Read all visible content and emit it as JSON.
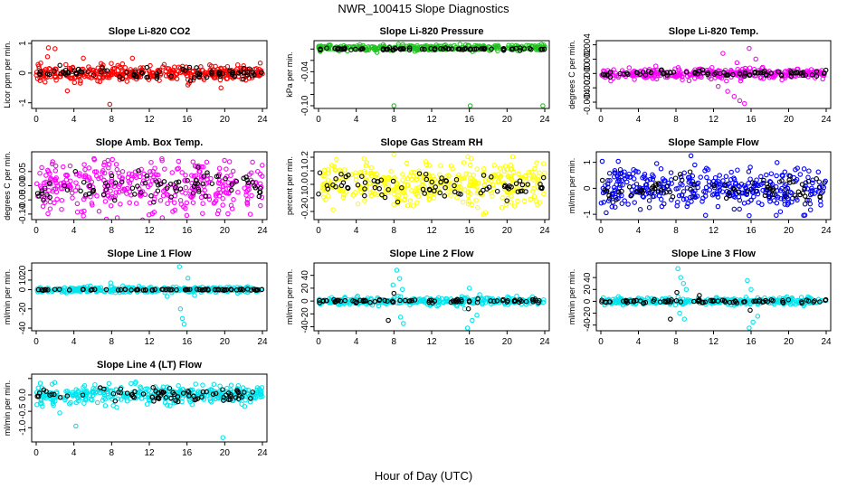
{
  "figure": {
    "title": "NWR_100415  Slope Diagnostics",
    "xlabel": "Hour of Day (UTC)"
  },
  "colors": {
    "red": "#ff0000",
    "green": "#22c222",
    "magenta": "#ff00ff",
    "yellow": "#ffff00",
    "blue": "#0000ff",
    "cyan": "#00e5ee",
    "black": "#000000"
  },
  "chart_data": [
    {
      "type": "scatter",
      "title": "Slope Li-820 CO2",
      "ylabel": "Licor ppm per min.",
      "xlim": [
        0,
        24
      ],
      "xticks": [
        0,
        4,
        8,
        12,
        16,
        20,
        24
      ],
      "ylim": [
        -1.1,
        1.0
      ],
      "yticks": [
        -1,
        0,
        1
      ],
      "series": [
        {
          "color": "red",
          "n": 380,
          "center": 0.0,
          "spread": 0.13,
          "outliers": [
            [
              1.3,
              0.85
            ],
            [
              2.0,
              0.82
            ],
            [
              1.2,
              0.55
            ],
            [
              5.0,
              0.5
            ],
            [
              10.2,
              0.5
            ],
            [
              3.3,
              -0.6
            ],
            [
              7.8,
              -1.05
            ],
            [
              16.1,
              -0.4
            ],
            [
              19.6,
              -0.5
            ]
          ]
        },
        {
          "color": "black",
          "n": 80,
          "center": 0.0,
          "spread": 0.1,
          "outliers": []
        }
      ]
    },
    {
      "type": "scatter",
      "title": "Slope Li-820 Pressure",
      "ylabel": "kPa per min.",
      "xlim": [
        0,
        24
      ],
      "xticks": [
        0,
        4,
        8,
        12,
        16,
        20,
        24
      ],
      "ylim": [
        -0.1,
        0.01
      ],
      "yticks": [
        -0.1,
        -0.08,
        -0.06,
        -0.04,
        -0.02,
        0
      ],
      "ytick_labels": [
        "-0.10",
        "",
        "",
        "-0.04",
        "",
        ""
      ],
      "series": [
        {
          "color": "green",
          "n": 330,
          "center": 0.002,
          "spread": 0.0025,
          "outliers": [
            [
              6.2,
              -0.006
            ],
            [
              8.0,
              -0.1
            ],
            [
              16.1,
              -0.1
            ],
            [
              23.8,
              -0.1
            ],
            [
              19.0,
              -0.003
            ]
          ]
        },
        {
          "color": "black",
          "n": 80,
          "center": 0.0,
          "spread": 0.001,
          "outliers": []
        }
      ]
    },
    {
      "type": "scatter",
      "title": "Slope Li-820 Temp.",
      "ylabel": "degrees C per min.",
      "xlim": [
        0,
        24
      ],
      "xticks": [
        0,
        4,
        8,
        12,
        16,
        20,
        24
      ],
      "ylim": [
        -0.0045,
        0.0042
      ],
      "yticks": [
        -0.004,
        -0.002,
        0,
        0.002,
        0.004
      ],
      "ytick_labels": [
        "-0.004",
        "-0.002",
        "0.000",
        "0.002",
        "0.004"
      ],
      "series": [
        {
          "color": "magenta",
          "n": 330,
          "center": 0.0,
          "spread": 0.0004,
          "outliers": [
            [
              13.5,
              -0.0025
            ],
            [
              14.2,
              -0.0032
            ],
            [
              14.8,
              -0.0038
            ],
            [
              15.3,
              -0.0042
            ],
            [
              15.8,
              0.0035
            ],
            [
              13.0,
              0.0028
            ],
            [
              16.5,
              0.002
            ],
            [
              12.5,
              -0.0018
            ],
            [
              14.5,
              0.0015
            ]
          ]
        },
        {
          "color": "black",
          "n": 80,
          "center": 0.0,
          "spread": 0.0002,
          "outliers": []
        }
      ]
    },
    {
      "type": "scatter",
      "title": "Slope Amb. Box Temp.",
      "ylabel": "degrees C per min.",
      "xlim": [
        0,
        24
      ],
      "xticks": [
        0,
        4,
        8,
        12,
        16,
        20,
        24
      ],
      "ylim": [
        -0.11,
        0.11
      ],
      "yticks": [
        -0.1,
        -0.05,
        0,
        0.05
      ],
      "ytick_labels": [
        "-0.10",
        "-0.05",
        "0.00",
        "0.05"
      ],
      "series": [
        {
          "color": "magenta",
          "n": 360,
          "center": 0.0,
          "spread": 0.05,
          "outliers": []
        },
        {
          "color": "black",
          "n": 80,
          "center": 0.0,
          "spread": 0.025,
          "outliers": []
        }
      ]
    },
    {
      "type": "scatter",
      "title": "Slope Gas Stream RH",
      "ylabel": "percent per min.",
      "xlim": [
        0,
        24
      ],
      "xticks": [
        0,
        4,
        8,
        12,
        16,
        20,
        24
      ],
      "ylim": [
        -0.24,
        0.22
      ],
      "yticks": [
        -0.2,
        -0.1,
        0,
        0.1,
        0.2
      ],
      "ytick_labels": [
        "-0.2",
        "-0.1",
        "0.0",
        "0.1",
        "0.2"
      ],
      "series": [
        {
          "color": "yellow",
          "n": 360,
          "center": 0.0,
          "spread": 0.08,
          "outliers": [
            [
              8.0,
              0.22
            ],
            [
              16.2,
              0.19
            ],
            [
              17.5,
              -0.22
            ]
          ]
        },
        {
          "color": "black",
          "n": 80,
          "center": 0.0,
          "spread": 0.05,
          "outliers": []
        }
      ]
    },
    {
      "type": "scatter",
      "title": "Slope Sample Flow",
      "ylabel": "ml/min per min.",
      "xlim": [
        0,
        24
      ],
      "xticks": [
        0,
        4,
        8,
        12,
        16,
        20,
        24
      ],
      "ylim": [
        -1.1,
        1.3
      ],
      "yticks": [
        -1,
        0,
        1
      ],
      "series": [
        {
          "color": "blue",
          "n": 360,
          "center": 0.0,
          "spread": 0.4,
          "outliers": [
            [
              9.6,
              1.25
            ],
            [
              15.8,
              -1.05
            ],
            [
              10.0,
              0.9
            ],
            [
              14.2,
              -0.8
            ],
            [
              6.5,
              -0.7
            ]
          ]
        },
        {
          "color": "black",
          "n": 80,
          "center": 0.0,
          "spread": 0.25,
          "outliers": []
        }
      ]
    },
    {
      "type": "scatter",
      "title": "Slope Line 1 Flow",
      "ylabel": "ml/min per min.",
      "xlim": [
        0,
        24
      ],
      "xticks": [
        0,
        4,
        8,
        12,
        16,
        20,
        24
      ],
      "ylim": [
        -40,
        25
      ],
      "yticks": [
        -40,
        -20,
        0,
        10,
        20
      ],
      "ytick_labels": [
        "-40",
        "-20",
        "0",
        "10",
        "20"
      ],
      "series": [
        {
          "color": "cyan",
          "n": 330,
          "center": 0.0,
          "spread": 1.5,
          "outliers": [
            [
              7.9,
              7
            ],
            [
              8.4,
              -3
            ],
            [
              15.2,
              24
            ],
            [
              15.5,
              -30
            ],
            [
              15.7,
              -36
            ],
            [
              15.3,
              -20
            ],
            [
              16.1,
              12
            ],
            [
              9.2,
              4
            ],
            [
              13.9,
              -7
            ],
            [
              16.8,
              -6
            ]
          ]
        },
        {
          "color": "black",
          "n": 75,
          "center": 0.0,
          "spread": 0.3,
          "outliers": []
        }
      ]
    },
    {
      "type": "scatter",
      "title": "Slope Line 2 Flow",
      "ylabel": "ml/min per min.",
      "xlim": [
        0,
        24
      ],
      "xticks": [
        0,
        4,
        8,
        12,
        16,
        20,
        24
      ],
      "ylim": [
        -42,
        55
      ],
      "yticks": [
        -40,
        -20,
        0,
        20,
        40
      ],
      "series": [
        {
          "color": "cyan",
          "n": 330,
          "center": 0.0,
          "spread": 3.0,
          "outliers": [
            [
              8.3,
              48
            ],
            [
              8.6,
              35
            ],
            [
              7.9,
              25
            ],
            [
              8.9,
              18
            ],
            [
              8.7,
              -25
            ],
            [
              9.0,
              -35
            ],
            [
              15.8,
              -42
            ],
            [
              16.3,
              -30
            ],
            [
              16.8,
              -22
            ],
            [
              17.1,
              10
            ],
            [
              16.0,
              20
            ],
            [
              15.5,
              -12
            ]
          ]
        },
        {
          "color": "black",
          "n": 80,
          "center": 0.0,
          "spread": 1.5,
          "outliers": [
            [
              7.4,
              -30
            ],
            [
              8.0,
              12
            ],
            [
              15.9,
              -12
            ]
          ]
        }
      ]
    },
    {
      "type": "scatter",
      "title": "Slope Line 3 Flow",
      "ylabel": "ml/min per min.",
      "xlim": [
        0,
        24
      ],
      "xticks": [
        0,
        4,
        8,
        12,
        16,
        20,
        24
      ],
      "ylim": [
        -45,
        60
      ],
      "yticks": [
        -40,
        -20,
        0,
        20,
        40
      ],
      "series": [
        {
          "color": "cyan",
          "n": 330,
          "center": 0.0,
          "spread": 3.0,
          "outliers": [
            [
              8.2,
              55
            ],
            [
              8.5,
              40
            ],
            [
              8.8,
              30
            ],
            [
              9.1,
              20
            ],
            [
              8.4,
              -20
            ],
            [
              8.9,
              -30
            ],
            [
              15.8,
              -45
            ],
            [
              16.2,
              -35
            ],
            [
              16.7,
              -25
            ],
            [
              15.6,
              35
            ],
            [
              16.0,
              20
            ]
          ]
        },
        {
          "color": "black",
          "n": 80,
          "center": 0.0,
          "spread": 1.5,
          "outliers": [
            [
              7.4,
              -30
            ],
            [
              8.1,
              15
            ],
            [
              10.5,
              10
            ],
            [
              15.9,
              -15
            ]
          ]
        }
      ]
    },
    {
      "type": "scatter",
      "title": "Slope Line 4 (LT) Flow",
      "ylabel": "ml/min per min.",
      "xlim": [
        0,
        24
      ],
      "xticks": [
        0,
        4,
        8,
        12,
        16,
        20,
        24
      ],
      "ylim": [
        -1.35,
        0.55
      ],
      "yticks": [
        -1.0,
        -0.5,
        0,
        0.5
      ],
      "ytick_labels": [
        "-1.0",
        "-0.5",
        "0.0",
        ""
      ],
      "series": [
        {
          "color": "cyan",
          "n": 360,
          "center": 0.0,
          "spread": 0.15,
          "outliers": [
            [
              4.2,
              -0.95
            ],
            [
              19.8,
              -1.3
            ],
            [
              2.5,
              -0.55
            ],
            [
              10.5,
              0.35
            ]
          ]
        },
        {
          "color": "black",
          "n": 80,
          "center": 0.0,
          "spread": 0.1,
          "outliers": []
        }
      ]
    }
  ]
}
